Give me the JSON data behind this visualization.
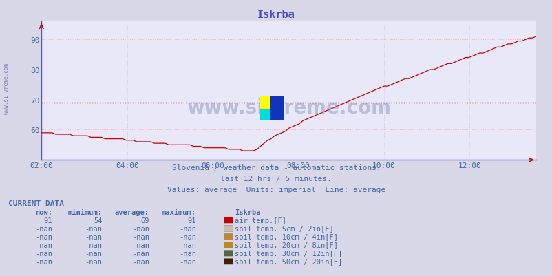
{
  "title": "Iskrba",
  "title_color": "#4444cc",
  "bg_color": "#d8d8e8",
  "plot_bg_color": "#e8e8f8",
  "grid_color_h": "#ffaaaa",
  "grid_color_v": "#ccccee",
  "line_color": "#cc0000",
  "avg_line_color": "#cc0000",
  "avg_value": 69,
  "xlim_hours": [
    2.0,
    13.55
  ],
  "ylim": [
    50,
    96
  ],
  "yticks": [
    60,
    70,
    80,
    90
  ],
  "xtick_labels": [
    "02:00",
    "04:00",
    "06:00",
    "08:00",
    "10:00",
    "12:00"
  ],
  "xtick_positions": [
    2,
    4,
    6,
    8,
    10,
    12
  ],
  "watermark_text": "www.si-vreme.com",
  "subtitle1": "Slovenia / weather data - automatic stations.",
  "subtitle2": "last 12 hrs / 5 minutes.",
  "subtitle3": "Values: average  Units: imperial  Line: average",
  "subtitle_color": "#4466aa",
  "current_data_label": "CURRENT DATA",
  "col_headers": [
    "now:",
    "minimum:",
    "average:",
    "maximum:",
    "Iskrba"
  ],
  "rows": [
    {
      "now": "91",
      "min": "54",
      "avg": "69",
      "max": "91",
      "color": "#cc0000",
      "label": "air temp.[F]"
    },
    {
      "now": "-nan",
      "min": "-nan",
      "avg": "-nan",
      "max": "-nan",
      "color": "#ccbbaa",
      "label": "soil temp. 5cm / 2in[F]"
    },
    {
      "now": "-nan",
      "min": "-nan",
      "avg": "-nan",
      "max": "-nan",
      "color": "#bb8833",
      "label": "soil temp. 10cm / 4in[F]"
    },
    {
      "now": "-nan",
      "min": "-nan",
      "avg": "-nan",
      "max": "-nan",
      "color": "#bb8822",
      "label": "soil temp. 20cm / 8in[F]"
    },
    {
      "now": "-nan",
      "min": "-nan",
      "avg": "-nan",
      "max": "-nan",
      "color": "#556644",
      "label": "soil temp. 30cm / 12in[F]"
    },
    {
      "now": "-nan",
      "min": "-nan",
      "avg": "-nan",
      "max": "-nan",
      "color": "#442200",
      "label": "soil temp. 50cm / 20in[F]"
    }
  ]
}
